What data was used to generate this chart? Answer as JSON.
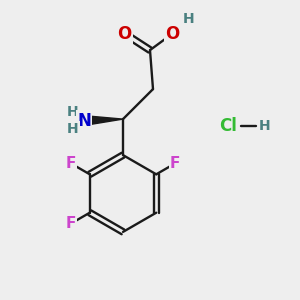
{
  "bg_color": "#eeeeee",
  "atom_colors": {
    "C": "#1a1a1a",
    "H": "#4a8080",
    "O": "#cc0000",
    "N": "#0000cc",
    "F": "#cc44cc",
    "Cl": "#33bb33"
  },
  "bond_color": "#1a1a1a",
  "figsize": [
    3.0,
    3.0
  ],
  "dpi": 100
}
